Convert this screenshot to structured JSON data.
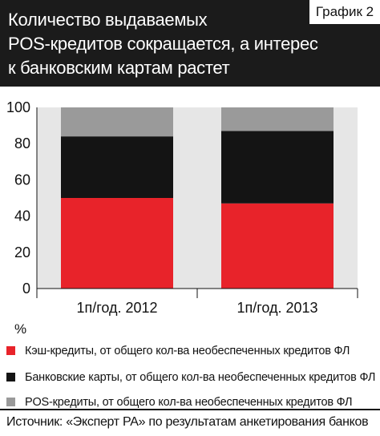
{
  "header": {
    "title_lines": [
      "Количество выдаваемых",
      "POS-кредитов сокращается, а интерес",
      "к банковским картам растет"
    ],
    "badge": "График 2"
  },
  "chart_data": {
    "type": "bar",
    "stacked": true,
    "categories": [
      "1п/год. 2012",
      "1п/год. 2013"
    ],
    "series": [
      {
        "name": "Кэш-кредиты, от общего кол-ва  необеспеченных кредитов ФЛ",
        "color": "#e8232a",
        "values": [
          50,
          47
        ]
      },
      {
        "name": "Банковские карты, от общего кол-ва необеспеченных кредитов ФЛ",
        "color": "#141414",
        "values": [
          34,
          40
        ]
      },
      {
        "name": "POS-кредиты,  от общего кол-ва необеспеченных кредитов ФЛ",
        "color": "#9a9a9a",
        "values": [
          16,
          13
        ]
      }
    ],
    "y_ticks": [
      "0",
      "20",
      "40",
      "60",
      "80",
      "100"
    ],
    "ylim": [
      0,
      100
    ],
    "yunit": "%",
    "plot_background": "#e6e6e6",
    "legend_position": "bottom"
  },
  "source": "Источник: «Эксперт РА» по результатам анкетирования банков"
}
